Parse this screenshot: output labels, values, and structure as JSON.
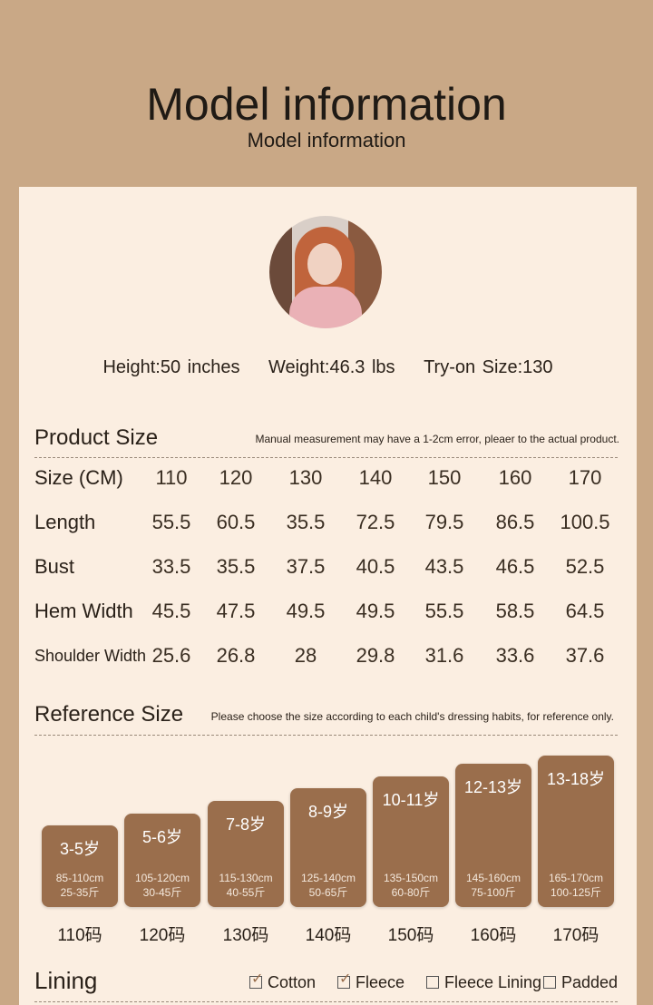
{
  "header": {
    "title": "Model information",
    "subtitle": "Model information"
  },
  "model": {
    "height": "Height:50 inches",
    "weight": "Weight:46.3 lbs",
    "size": "Try-on Size:130"
  },
  "product_size": {
    "title": "Product Size",
    "note": "Manual measurement may have a 1-2cm error, pleaer to the actual product.",
    "rows": [
      {
        "label": "Size (CM)",
        "values": [
          "110",
          "120",
          "130",
          "140",
          "150",
          "160",
          "170"
        ]
      },
      {
        "label": "Length",
        "values": [
          "55.5",
          "60.5",
          "35.5",
          "72.5",
          "79.5",
          "86.5",
          "100.5"
        ]
      },
      {
        "label": "Bust",
        "values": [
          "33.5",
          "35.5",
          "37.5",
          "40.5",
          "43.5",
          "46.5",
          "52.5"
        ]
      },
      {
        "label": "Hem Width",
        "values": [
          "45.5",
          "47.5",
          "49.5",
          "49.5",
          "55.5",
          "58.5",
          "64.5"
        ]
      },
      {
        "label": "Shoulder Width",
        "values": [
          "25.6",
          "26.8",
          "28",
          "29.8",
          "31.6",
          "33.6",
          "37.6"
        ]
      }
    ]
  },
  "reference_size": {
    "title": "Reference Size",
    "note": "Please choose the size according to each child's dressing habits, for reference only.",
    "items": [
      {
        "age": "3-5岁",
        "height": "85-110cm",
        "weight": "25-35斤",
        "code": "110码"
      },
      {
        "age": "5-6岁",
        "height": "105-120cm",
        "weight": "30-45斤",
        "code": "120码"
      },
      {
        "age": "7-8岁",
        "height": "115-130cm",
        "weight": "40-55斤",
        "code": "130码"
      },
      {
        "age": "8-9岁",
        "height": "125-140cm",
        "weight": "50-65斤",
        "code": "140码"
      },
      {
        "age": "10-11岁",
        "height": "135-150cm",
        "weight": "60-80斤",
        "code": "150码"
      },
      {
        "age": "12-13岁",
        "height": "145-160cm",
        "weight": "75-100斤",
        "code": "160码"
      },
      {
        "age": "13-18岁",
        "height": "165-170cm",
        "weight": "100-125斤",
        "code": "170码"
      }
    ]
  },
  "lining": {
    "title": "Lining",
    "options": [
      {
        "label": "Cotton",
        "checked": true
      },
      {
        "label": "Fleece",
        "checked": true
      },
      {
        "label": "Fleece Lining",
        "checked": false
      },
      {
        "label": "Padded",
        "checked": false
      }
    ]
  },
  "colors": {
    "background": "#c9a886",
    "card": "#fbeee1",
    "box": "#9a6e4c"
  }
}
